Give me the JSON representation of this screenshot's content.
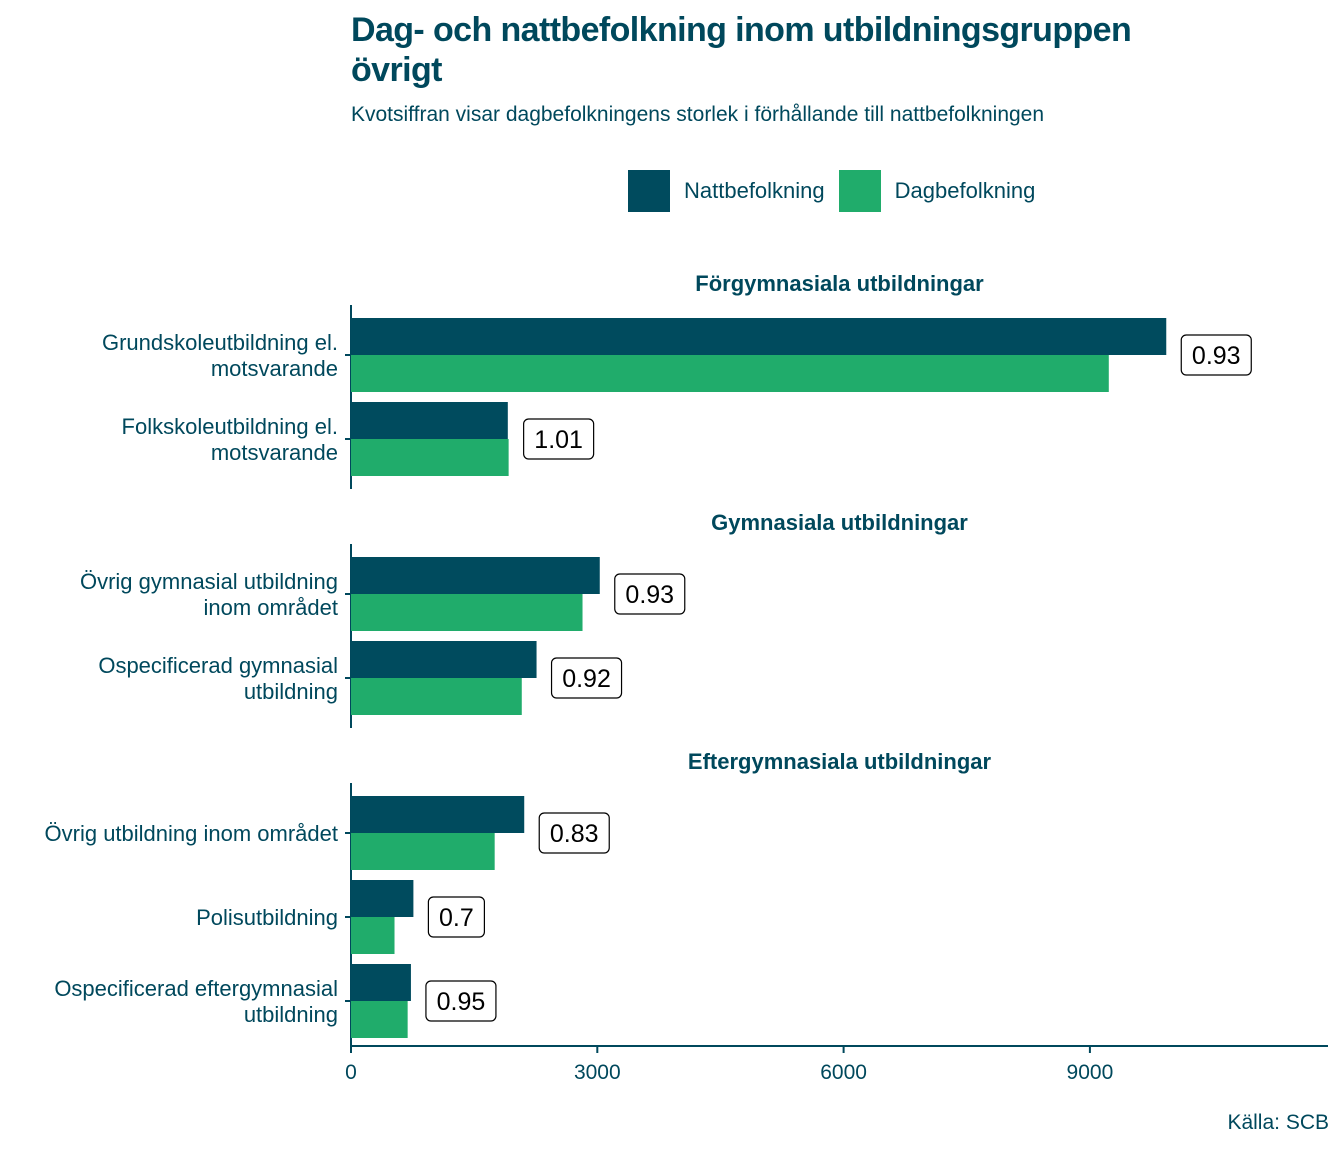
{
  "title": "Dag- och nattbefolkning inom utbildningsgruppen övrigt",
  "subtitle": "Kvotsiffran visar dagbefolkningens storlek i förhållande till nattbefolkningen",
  "source": "Källa: SCB",
  "legend": [
    {
      "name": "Nattbefolkning",
      "color": "#004b5e"
    },
    {
      "name": "Dagbefolkning",
      "color": "#20ac6b"
    }
  ],
  "chart_data": {
    "type": "bar",
    "orientation": "horizontal",
    "xlim": [
      0,
      11900
    ],
    "x_ticks": [
      0,
      3000,
      6000,
      9000
    ],
    "grid": false,
    "legend_position": "top",
    "series_names": [
      "Nattbefolkning",
      "Dagbefolkning"
    ],
    "panels": [
      {
        "title": "Förgymnasiala utbildningar",
        "categories": [
          {
            "label": [
              "Grundskoleutbildning el.",
              "motsvarande"
            ],
            "nattbefolkning": 9930,
            "dagbefolkning": 9230,
            "ratio": "0.93"
          },
          {
            "label": [
              "Folkskoleutbildning el.",
              "motsvarande"
            ],
            "nattbefolkning": 1910,
            "dagbefolkning": 1920,
            "ratio": "1.01"
          }
        ]
      },
      {
        "title": "Gymnasiala utbildningar",
        "categories": [
          {
            "label": [
              "Övrig gymnasial utbildning",
              "inom området"
            ],
            "nattbefolkning": 3030,
            "dagbefolkning": 2820,
            "ratio": "0.93"
          },
          {
            "label": [
              "Ospecificerad gymnasial",
              "utbildning"
            ],
            "nattbefolkning": 2260,
            "dagbefolkning": 2080,
            "ratio": "0.92"
          }
        ]
      },
      {
        "title": "Eftergymnasiala utbildningar",
        "categories": [
          {
            "label": [
              "Övrig utbildning inom området"
            ],
            "nattbefolkning": 2110,
            "dagbefolkning": 1750,
            "ratio": "0.83"
          },
          {
            "label": [
              "Polisutbildning"
            ],
            "nattbefolkning": 760,
            "dagbefolkning": 530,
            "ratio": "0.7"
          },
          {
            "label": [
              "Ospecificerad eftergymnasial",
              "utbildning"
            ],
            "nattbefolkning": 730,
            "dagbefolkning": 690,
            "ratio": "0.95"
          }
        ]
      }
    ]
  }
}
